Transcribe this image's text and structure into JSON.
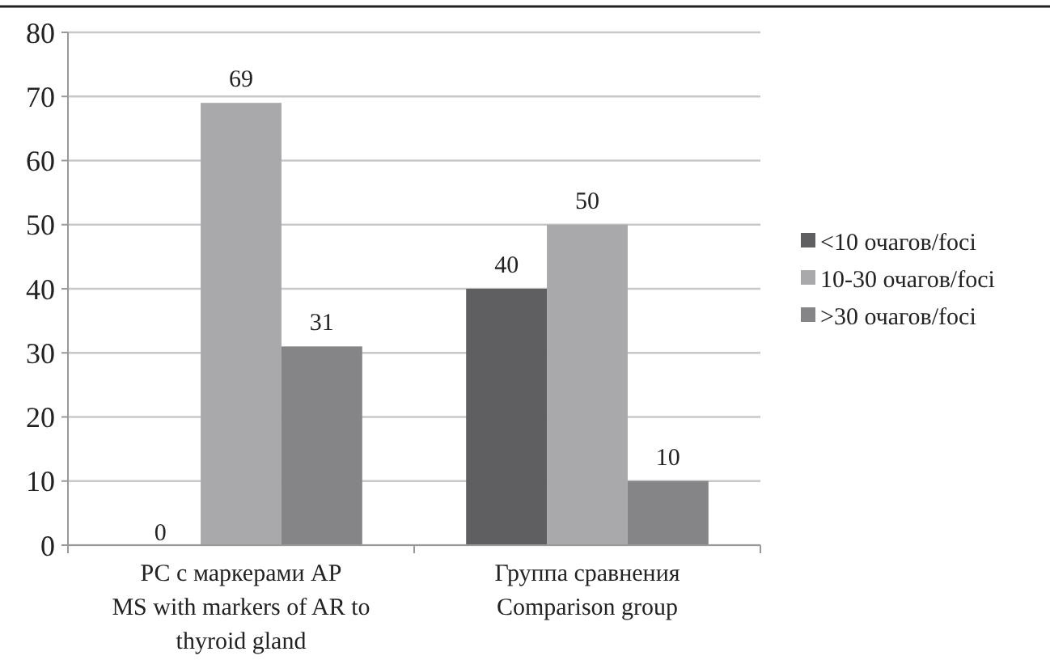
{
  "chart_data": {
    "type": "bar",
    "categories": [
      "РС с маркерами АР\nMS with markers of AR to\nthyroid gland",
      "Группа сравнения\nComparison group"
    ],
    "series": [
      {
        "name": "<10 очагов/foci",
        "color": "#5f5f61",
        "values": [
          0,
          40
        ]
      },
      {
        "name": "10-30 очагов/foci",
        "color": "#a9a9ab",
        "values": [
          69,
          50
        ]
      },
      {
        "name": ">30 очагов/foci",
        "color": "#858587",
        "values": [
          31,
          10
        ]
      }
    ],
    "ylim": [
      0,
      80
    ],
    "yticks": [
      0,
      10,
      20,
      30,
      40,
      50,
      60,
      70,
      80
    ],
    "grid": "y",
    "legend": "right",
    "data_labels": true
  }
}
